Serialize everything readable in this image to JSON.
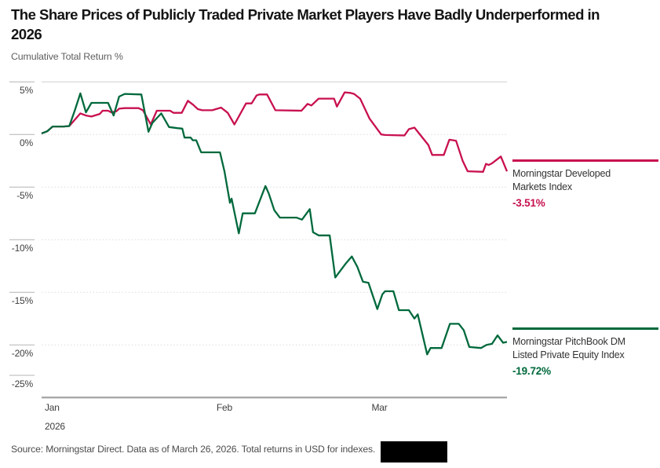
{
  "header": {
    "title_display": "The Share Prices of Publicly Traded Private Market Players Have Badly Underperformed in\n2026",
    "subtitle": "Cumulative Total Return %"
  },
  "chart_data": {
    "type": "line",
    "title": "The Share Prices of Publicly Traded Private Market Players Have Badly Underperformed in 2026",
    "ylabel": "Cumulative Total Return %",
    "grid": "horizontal, dotted; solid top rule at 5% and solid axis baseline at -25%",
    "legend_position": "right",
    "x_axis": {
      "unit": "day of year 2026",
      "range_days": [
        1,
        85
      ],
      "ticks": [
        {
          "label": "Jan",
          "day": 1
        },
        {
          "label": "Feb",
          "day": 32
        },
        {
          "label": "Mar",
          "day": 60
        }
      ],
      "year_label": "2026"
    },
    "y_axis": {
      "range": [
        -25,
        5
      ],
      "tick_step": 5,
      "ticks": [
        {
          "label": "5%",
          "value": 5
        },
        {
          "label": "0%",
          "value": 0
        },
        {
          "label": "-5%",
          "value": -5
        },
        {
          "label": "-10%",
          "value": -10
        },
        {
          "label": "-15%",
          "value": -15
        },
        {
          "label": "-20%",
          "value": -20
        },
        {
          "label": "-25%",
          "value": -25
        }
      ]
    },
    "series": [
      {
        "name": "Morningstar Developed Markets Index",
        "legend_name": "Morningstar Developed\nMarkets Index",
        "final_value": -3.51,
        "final_label": "-3.51%",
        "color": "#C81050",
        "points": [
          [
            1,
            0.1
          ],
          [
            2,
            0.3
          ],
          [
            3,
            0.75
          ],
          [
            5,
            0.75
          ],
          [
            6,
            0.8
          ],
          [
            7,
            1.4
          ],
          [
            8,
            2.0
          ],
          [
            9,
            1.8
          ],
          [
            10,
            1.7
          ],
          [
            11.5,
            1.95
          ],
          [
            12,
            2.25
          ],
          [
            13,
            2.25
          ],
          [
            13.6,
            2.1
          ],
          [
            14.5,
            2.2
          ],
          [
            15,
            2.45
          ],
          [
            16,
            2.5
          ],
          [
            18.5,
            2.5
          ],
          [
            19.3,
            2.3
          ],
          [
            20.7,
            0.95
          ],
          [
            21.8,
            2.25
          ],
          [
            24.2,
            2.25
          ],
          [
            24.8,
            2.05
          ],
          [
            26.3,
            2.05
          ],
          [
            27.4,
            3.2
          ],
          [
            28.4,
            2.8
          ],
          [
            29.2,
            2.4
          ],
          [
            30,
            2.3
          ],
          [
            31.8,
            2.3
          ],
          [
            33.4,
            2.55
          ],
          [
            34.6,
            2.05
          ],
          [
            35.8,
            0.95
          ],
          [
            37.9,
            2.95
          ],
          [
            38.9,
            2.95
          ],
          [
            39.8,
            3.7
          ],
          [
            40.3,
            3.8
          ],
          [
            41.7,
            3.8
          ],
          [
            43.2,
            2.3
          ],
          [
            47.9,
            2.25
          ],
          [
            49,
            2.9
          ],
          [
            49.7,
            2.75
          ],
          [
            51,
            3.4
          ],
          [
            53.8,
            3.4
          ],
          [
            54.3,
            2.65
          ],
          [
            55.7,
            4.0
          ],
          [
            56.7,
            3.95
          ],
          [
            57.4,
            3.85
          ],
          [
            58.5,
            3.4
          ],
          [
            60.2,
            1.5
          ],
          [
            62.3,
            0.0
          ],
          [
            63,
            -0.05
          ],
          [
            66.5,
            -0.1
          ],
          [
            67.3,
            0.5
          ],
          [
            68.3,
            0.65
          ],
          [
            70.8,
            -1.0
          ],
          [
            71.5,
            -1.95
          ],
          [
            73.6,
            -1.95
          ],
          [
            74.6,
            -0.5
          ],
          [
            75.8,
            -0.6
          ],
          [
            77,
            -2.5
          ],
          [
            77.9,
            -3.5
          ],
          [
            80.7,
            -3.55
          ],
          [
            81.2,
            -2.8
          ],
          [
            81.7,
            -2.9
          ],
          [
            82.3,
            -2.75
          ],
          [
            83.9,
            -2.1
          ],
          [
            85,
            -3.51
          ]
        ]
      },
      {
        "name": "Morningstar PitchBook DM Listed Private Equity Index",
        "legend_name": "Morningstar PitchBook DM\nListed Private Equity Index",
        "final_value": -19.72,
        "final_label": "-19.72%",
        "color": "#00693C",
        "points": [
          [
            1,
            0.1
          ],
          [
            2,
            0.3
          ],
          [
            3,
            0.75
          ],
          [
            5,
            0.75
          ],
          [
            6,
            0.8
          ],
          [
            7,
            2.3
          ],
          [
            8,
            3.9
          ],
          [
            9,
            2.1
          ],
          [
            10,
            3.0
          ],
          [
            13,
            3.0
          ],
          [
            14,
            1.8
          ],
          [
            15,
            3.6
          ],
          [
            16,
            3.85
          ],
          [
            19,
            3.8
          ],
          [
            20.3,
            0.25
          ],
          [
            21,
            1.1
          ],
          [
            22.6,
            2.0
          ],
          [
            24,
            0.7
          ],
          [
            25.5,
            0.6
          ],
          [
            26.4,
            0.55
          ],
          [
            26.8,
            -0.3
          ],
          [
            27.9,
            -0.3
          ],
          [
            28.3,
            -0.55
          ],
          [
            28.9,
            -0.55
          ],
          [
            29.8,
            -1.7
          ],
          [
            33.2,
            -1.7
          ],
          [
            34,
            -3.5
          ],
          [
            35,
            -6.5
          ],
          [
            35.3,
            -6.1
          ],
          [
            36.6,
            -9.4
          ],
          [
            37.3,
            -7.5
          ],
          [
            39.5,
            -7.5
          ],
          [
            41.4,
            -4.9
          ],
          [
            42,
            -5.6
          ],
          [
            43,
            -7.2
          ],
          [
            44,
            -7.9
          ],
          [
            47,
            -7.9
          ],
          [
            48,
            -8.1
          ],
          [
            49.4,
            -7.1
          ],
          [
            50,
            -9.3
          ],
          [
            51,
            -9.6
          ],
          [
            53,
            -9.6
          ],
          [
            54,
            -13.6
          ],
          [
            55,
            -12.9
          ],
          [
            56,
            -12.2
          ],
          [
            57,
            -11.6
          ],
          [
            58,
            -12.6
          ],
          [
            59,
            -14.0
          ],
          [
            60,
            -14.1
          ],
          [
            61.6,
            -16.6
          ],
          [
            62.5,
            -15.2
          ],
          [
            63,
            -14.9
          ],
          [
            64.5,
            -14.9
          ],
          [
            65.5,
            -16.7
          ],
          [
            67.3,
            -16.7
          ],
          [
            68.3,
            -17.5
          ],
          [
            68.9,
            -17.1
          ],
          [
            70.6,
            -20.9
          ],
          [
            71.2,
            -20.3
          ],
          [
            73.2,
            -20.3
          ],
          [
            74.7,
            -18.0
          ],
          [
            76.3,
            -18.0
          ],
          [
            77.2,
            -18.6
          ],
          [
            78.2,
            -20.2
          ],
          [
            80.3,
            -20.3
          ],
          [
            81.3,
            -20.0
          ],
          [
            82.3,
            -19.9
          ],
          [
            83.3,
            -19.1
          ],
          [
            84.3,
            -19.8
          ],
          [
            85,
            -19.72
          ]
        ]
      }
    ]
  },
  "footer": {
    "source": "Source: Morningstar Direct. Data as of March 26, 2026. Total returns in USD for indexes.",
    "redaction_box": true
  },
  "style_colors": {
    "developed_markets_red": "#C81050",
    "private_equity_green": "#00693C",
    "solid_gridline": "#cfcfcf",
    "dotted_gridline": "#dcdcdc",
    "axis_baseline": "#a8a8a8",
    "tick_mark": "#b4b4b4"
  }
}
